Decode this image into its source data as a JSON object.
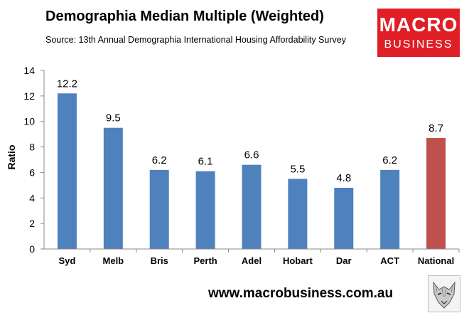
{
  "title": "Demographia Median Multiple (Weighted)",
  "subtitle": "Source: 13th Annual Demographia International Housing Affordability Survey",
  "logo": {
    "line1": "MACRO",
    "line2": "BUSINESS",
    "color": "#e01e26"
  },
  "footer": {
    "website": "www.macrobusiness.com.au",
    "logo_icon": "wolf-icon"
  },
  "colors": {
    "bar": "#4f81bd",
    "highlight": "#c0504d",
    "axis": "#898989"
  },
  "chart_data": {
    "type": "bar",
    "title": "Demographia Median Multiple (Weighted)",
    "subtitle": "Source: 13th Annual Demographia International Housing Affordability Survey",
    "xlabel": "",
    "ylabel": "Ratio",
    "ylim": [
      0,
      14
    ],
    "yticks": [
      0,
      2,
      4,
      6,
      8,
      10,
      12,
      14
    ],
    "grid": false,
    "legend": "none",
    "categories": [
      "Syd",
      "Melb",
      "Bris",
      "Perth",
      "Adel",
      "Hobart",
      "Dar",
      "ACT",
      "National"
    ],
    "values": [
      12.2,
      9.5,
      6.2,
      6.1,
      6.6,
      5.5,
      4.8,
      6.2,
      8.7
    ],
    "value_labels": [
      "12.2",
      "9.5",
      "6.2",
      "6.1",
      "6.6",
      "5.5",
      "4.8",
      "6.2",
      "8.7"
    ],
    "highlight_category": "National"
  }
}
